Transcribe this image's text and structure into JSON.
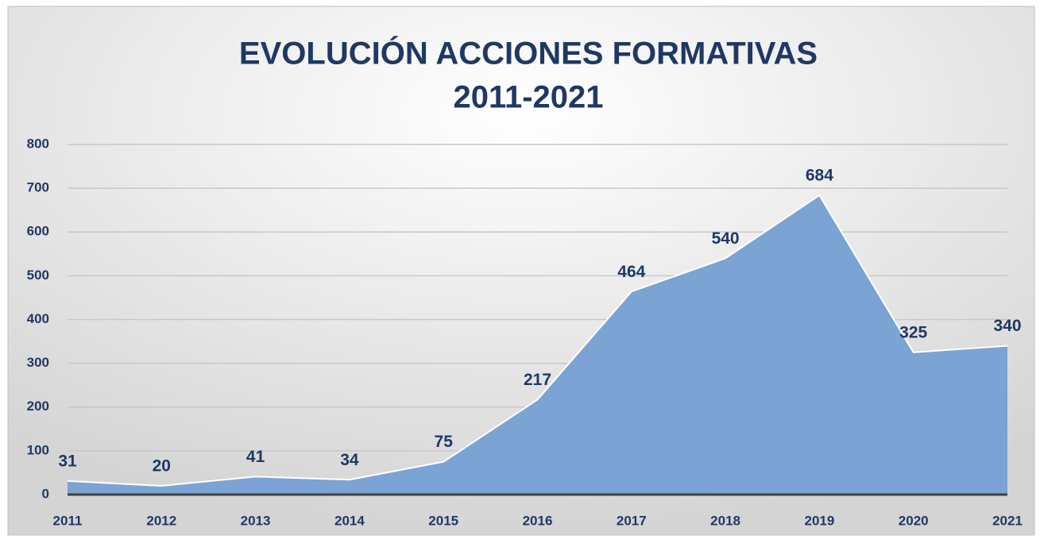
{
  "chart_data": {
    "type": "area",
    "title": [
      "EVOLUCIÓN ACCIONES FORMATIVAS",
      "2011-2021"
    ],
    "categories": [
      "2011",
      "2012",
      "2013",
      "2014",
      "2015",
      "2016",
      "2017",
      "2018",
      "2019",
      "2020",
      "2021"
    ],
    "values": [
      31,
      20,
      41,
      34,
      75,
      217,
      464,
      540,
      684,
      325,
      340
    ],
    "color": "#7ba3d4",
    "ylim": [
      0,
      800
    ],
    "yticks": [
      0,
      100,
      200,
      300,
      400,
      500,
      600,
      700,
      800
    ],
    "grid": true
  }
}
